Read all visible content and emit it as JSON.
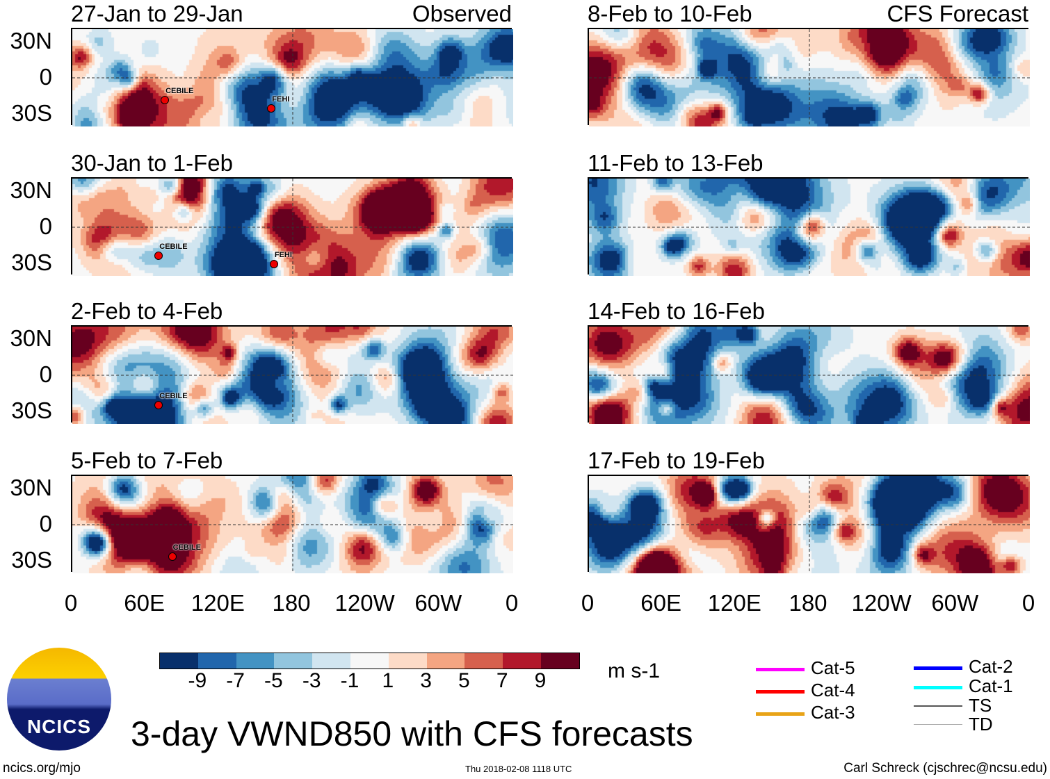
{
  "figure_title": "3-day VWND850 with CFS forecasts",
  "left_column_label": "Observed",
  "right_column_label": "CFS Forecast",
  "panels_left": [
    {
      "title": "27-Jan to 29-Jan",
      "storms": [
        {
          "name": "CEBILE",
          "lon": 75,
          "lat": -18
        },
        {
          "name": "FEHI",
          "lon": 162,
          "lat": -25
        }
      ]
    },
    {
      "title": "30-Jan to 1-Feb",
      "storms": [
        {
          "name": "CEBILE",
          "lon": 70,
          "lat": -23
        },
        {
          "name": "FEHI",
          "lon": 164,
          "lat": -30
        }
      ]
    },
    {
      "title": "2-Feb to 4-Feb",
      "storms": [
        {
          "name": "CEBILE",
          "lon": 70,
          "lat": -24
        }
      ]
    },
    {
      "title": "5-Feb to 7-Feb",
      "storms": [
        {
          "name": "CEBILE",
          "lon": 81,
          "lat": -26
        }
      ]
    }
  ],
  "panels_right": [
    {
      "title": "8-Feb to 10-Feb"
    },
    {
      "title": "11-Feb to 13-Feb"
    },
    {
      "title": "14-Feb to 16-Feb"
    },
    {
      "title": "17-Feb to 19-Feb"
    }
  ],
  "lat_ticks": [
    "30N",
    "0",
    "30S"
  ],
  "lon_ticks": [
    "0",
    "60E",
    "120E",
    "180",
    "120W",
    "60W",
    "0"
  ],
  "colorbar": {
    "unit": "m s-1",
    "labels": [
      "-9",
      "-7",
      "-5",
      "-3",
      "-1",
      "1",
      "3",
      "5",
      "7",
      "9"
    ],
    "colors": [
      "#08306b",
      "#2166ac",
      "#4393c3",
      "#92c5de",
      "#d1e5f0",
      "#f7f7f7",
      "#fddbc7",
      "#f4a582",
      "#d6604d",
      "#b2182b",
      "#67001f"
    ]
  },
  "legend": [
    {
      "label": "Cat-5",
      "color": "#ff00ff"
    },
    {
      "label": "Cat-4",
      "color": "#ff0000"
    },
    {
      "label": "Cat-3",
      "color": "#e8a317"
    },
    {
      "label": "Cat-2",
      "color": "#0000ff"
    },
    {
      "label": "Cat-1",
      "color": "#00ffff"
    },
    {
      "label": "TS",
      "color": "#555555"
    },
    {
      "label": "TD",
      "color": "#aaaaaa"
    }
  ],
  "logo_text": "NCICS",
  "footer": {
    "left": "ncics.org/mjo",
    "center": "Thu 2018-02-08 1118 UTC",
    "right": "Carl Schreck (cjschrec@ncsu.edu)"
  }
}
